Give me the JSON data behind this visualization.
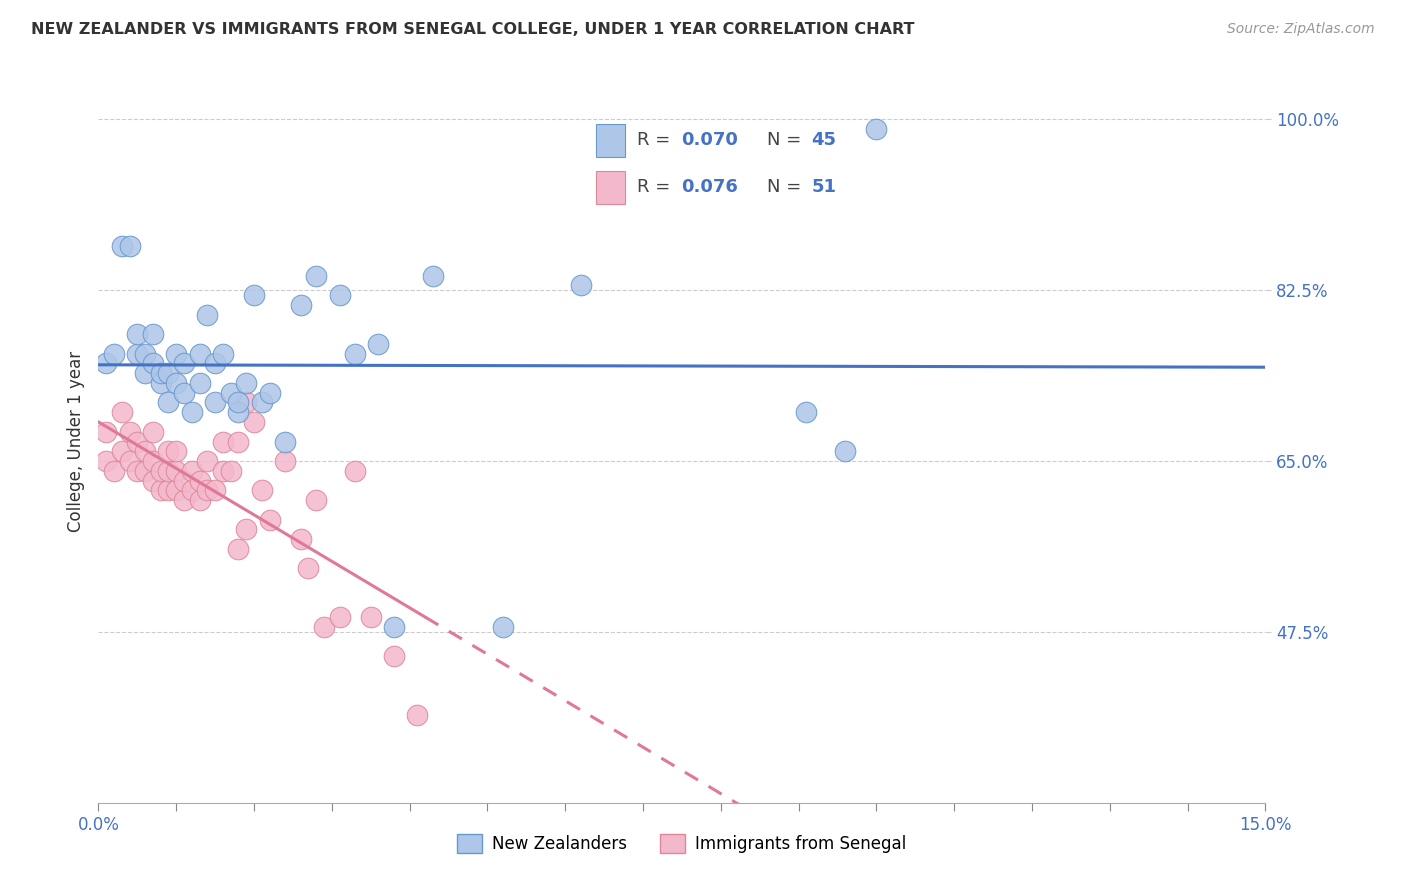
{
  "title": "NEW ZEALANDER VS IMMIGRANTS FROM SENEGAL COLLEGE, UNDER 1 YEAR CORRELATION CHART",
  "source": "Source: ZipAtlas.com",
  "ylabel": "College, Under 1 year",
  "xlim": [
    0.0,
    0.15
  ],
  "ylim": [
    0.3,
    1.04
  ],
  "ytick_positions": [
    0.475,
    0.65,
    0.825,
    1.0
  ],
  "ytick_labels": [
    "47.5%",
    "65.0%",
    "82.5%",
    "100.0%"
  ],
  "background_color": "#ffffff",
  "grid_color": "#cccccc",
  "nz_color": "#aec6e8",
  "nz_edge_color": "#6699cc",
  "senegal_color": "#f4b8cc",
  "senegal_edge_color": "#dd8899",
  "nz_line_color": "#4472c4",
  "senegal_line_color": "#e07898",
  "R_nz": 0.07,
  "N_nz": 45,
  "R_senegal": 0.076,
  "N_senegal": 51,
  "legend_label_nz": "New Zealanders",
  "legend_label_senegal": "Immigrants from Senegal",
  "nz_x": [
    0.001,
    0.002,
    0.003,
    0.004,
    0.005,
    0.005,
    0.006,
    0.006,
    0.007,
    0.007,
    0.008,
    0.008,
    0.009,
    0.009,
    0.01,
    0.01,
    0.011,
    0.011,
    0.012,
    0.013,
    0.013,
    0.014,
    0.015,
    0.015,
    0.016,
    0.017,
    0.018,
    0.018,
    0.019,
    0.02,
    0.021,
    0.022,
    0.024,
    0.026,
    0.028,
    0.031,
    0.033,
    0.036,
    0.038,
    0.043,
    0.052,
    0.062,
    0.091,
    0.096,
    0.1
  ],
  "nz_y": [
    0.75,
    0.76,
    0.87,
    0.87,
    0.76,
    0.78,
    0.74,
    0.76,
    0.75,
    0.78,
    0.73,
    0.74,
    0.71,
    0.74,
    0.73,
    0.76,
    0.72,
    0.75,
    0.7,
    0.73,
    0.76,
    0.8,
    0.71,
    0.75,
    0.76,
    0.72,
    0.7,
    0.71,
    0.73,
    0.82,
    0.71,
    0.72,
    0.67,
    0.81,
    0.84,
    0.82,
    0.76,
    0.77,
    0.48,
    0.84,
    0.48,
    0.83,
    0.7,
    0.66,
    0.99
  ],
  "senegal_x": [
    0.001,
    0.001,
    0.002,
    0.003,
    0.003,
    0.004,
    0.004,
    0.005,
    0.005,
    0.006,
    0.006,
    0.007,
    0.007,
    0.007,
    0.008,
    0.008,
    0.009,
    0.009,
    0.009,
    0.01,
    0.01,
    0.01,
    0.011,
    0.011,
    0.012,
    0.012,
    0.013,
    0.013,
    0.014,
    0.014,
    0.015,
    0.016,
    0.016,
    0.017,
    0.018,
    0.018,
    0.019,
    0.019,
    0.02,
    0.021,
    0.022,
    0.024,
    0.026,
    0.027,
    0.028,
    0.029,
    0.031,
    0.033,
    0.035,
    0.038,
    0.041
  ],
  "senegal_y": [
    0.65,
    0.68,
    0.64,
    0.66,
    0.7,
    0.65,
    0.68,
    0.64,
    0.67,
    0.64,
    0.66,
    0.63,
    0.65,
    0.68,
    0.62,
    0.64,
    0.62,
    0.64,
    0.66,
    0.62,
    0.64,
    0.66,
    0.61,
    0.63,
    0.62,
    0.64,
    0.61,
    0.63,
    0.62,
    0.65,
    0.62,
    0.64,
    0.67,
    0.64,
    0.56,
    0.67,
    0.58,
    0.71,
    0.69,
    0.62,
    0.59,
    0.65,
    0.57,
    0.54,
    0.61,
    0.48,
    0.49,
    0.64,
    0.49,
    0.45,
    0.39
  ]
}
